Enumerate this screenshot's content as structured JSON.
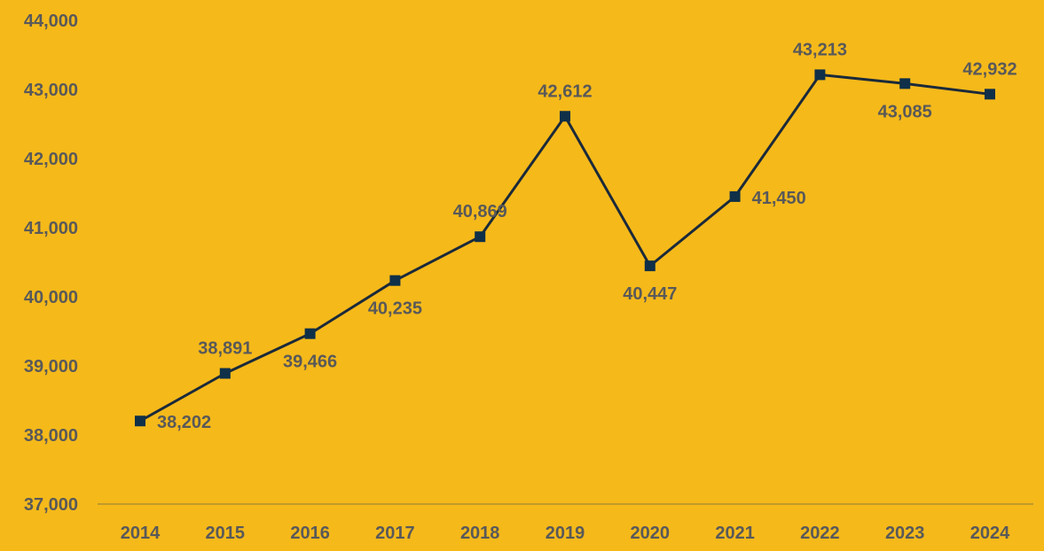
{
  "chart_data": {
    "type": "line",
    "categories": [
      "2014",
      "2015",
      "2016",
      "2017",
      "2018",
      "2019",
      "2020",
      "2021",
      "2022",
      "2023",
      "2024"
    ],
    "values": [
      38202,
      38891,
      39466,
      40235,
      40869,
      42612,
      40447,
      41450,
      43213,
      43085,
      42932
    ],
    "value_labels": [
      "38,202",
      "38,891",
      "39,466",
      "40,235",
      "40,869",
      "42,612",
      "40,447",
      "41,450",
      "43,213",
      "43,085",
      "42,932"
    ],
    "label_positions": [
      "right",
      "above",
      "below",
      "below",
      "above",
      "above",
      "below",
      "right",
      "above",
      "below",
      "above"
    ],
    "ylim": [
      37000,
      44000
    ],
    "y_ticks": [
      "37,000",
      "38,000",
      "39,000",
      "40,000",
      "41,000",
      "42,000",
      "43,000",
      "44,000"
    ],
    "title": "",
    "xlabel": "",
    "ylabel": "",
    "grid": false,
    "legend": "none",
    "marker": "square",
    "colors": {
      "background": "#f5b91a",
      "line": "#1b2a3a",
      "marker": "#0f3048",
      "text": "#595959",
      "axis": "#8c7a3a"
    }
  }
}
